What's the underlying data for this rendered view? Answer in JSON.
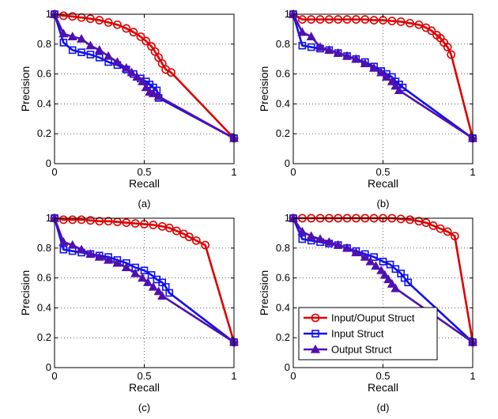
{
  "chart_data": [
    {
      "type": "line",
      "caption": "(a)",
      "xlabel": "Recall",
      "ylabel": "Precision",
      "xlim": [
        0,
        1
      ],
      "ylim": [
        0,
        1
      ],
      "xticks": [
        "0",
        "0.5",
        "1"
      ],
      "yticks": [
        "0",
        "0.2",
        "0.4",
        "0.6",
        "0.8",
        "1"
      ],
      "grid": true,
      "legend": false,
      "series": [
        {
          "name": "Input/Ouput Struct",
          "color": "#dd0000",
          "marker": "circle",
          "x": [
            0,
            0.05,
            0.1,
            0.15,
            0.2,
            0.25,
            0.3,
            0.35,
            0.4,
            0.44,
            0.48,
            0.51,
            0.54,
            0.56,
            0.58,
            0.6,
            0.62,
            0.65,
            1.0
          ],
          "y": [
            1.0,
            0.99,
            0.985,
            0.978,
            0.97,
            0.96,
            0.945,
            0.93,
            0.905,
            0.88,
            0.85,
            0.82,
            0.785,
            0.75,
            0.71,
            0.67,
            0.63,
            0.61,
            0.17
          ]
        },
        {
          "name": "Input Struct",
          "color": "#1010ee",
          "marker": "square",
          "x": [
            0,
            0.05,
            0.1,
            0.15,
            0.2,
            0.25,
            0.3,
            0.35,
            0.4,
            0.44,
            0.48,
            0.51,
            0.53,
            0.55,
            0.57,
            0.58,
            1.0
          ],
          "y": [
            1.0,
            0.81,
            0.76,
            0.745,
            0.73,
            0.71,
            0.68,
            0.66,
            0.63,
            0.6,
            0.57,
            0.55,
            0.53,
            0.51,
            0.49,
            0.44,
            0.17
          ]
        },
        {
          "name": "Output Struct",
          "color": "#5010b0",
          "marker": "triangle",
          "x": [
            0,
            0.05,
            0.1,
            0.15,
            0.2,
            0.25,
            0.3,
            0.35,
            0.4,
            0.43,
            0.46,
            0.49,
            0.51,
            0.53,
            0.55,
            0.58,
            1.0
          ],
          "y": [
            1.0,
            0.87,
            0.85,
            0.835,
            0.79,
            0.76,
            0.72,
            0.68,
            0.64,
            0.61,
            0.58,
            0.55,
            0.51,
            0.48,
            0.47,
            0.45,
            0.17
          ]
        }
      ]
    },
    {
      "type": "line",
      "caption": "(b)",
      "xlabel": "Recall",
      "ylabel": "Precision",
      "xlim": [
        0,
        1
      ],
      "ylim": [
        0,
        1
      ],
      "xticks": [
        "0",
        "0.5",
        "1"
      ],
      "yticks": [
        "0",
        "0.2",
        "0.4",
        "0.6",
        "0.8",
        "1"
      ],
      "grid": true,
      "legend": false,
      "series": [
        {
          "name": "Input/Ouput Struct",
          "color": "#dd0000",
          "marker": "circle",
          "x": [
            0,
            0.05,
            0.1,
            0.15,
            0.2,
            0.25,
            0.3,
            0.35,
            0.4,
            0.45,
            0.5,
            0.55,
            0.6,
            0.65,
            0.7,
            0.74,
            0.77,
            0.8,
            0.82,
            0.84,
            0.86,
            0.88,
            1.0
          ],
          "y": [
            1.0,
            0.965,
            0.965,
            0.965,
            0.965,
            0.965,
            0.965,
            0.965,
            0.965,
            0.96,
            0.96,
            0.955,
            0.95,
            0.94,
            0.93,
            0.91,
            0.89,
            0.86,
            0.84,
            0.81,
            0.78,
            0.73,
            0.17
          ]
        },
        {
          "name": "Input Struct",
          "color": "#1010ee",
          "marker": "square",
          "x": [
            0,
            0.05,
            0.1,
            0.15,
            0.2,
            0.25,
            0.3,
            0.35,
            0.4,
            0.45,
            0.49,
            0.52,
            0.55,
            0.57,
            0.59,
            0.61,
            1.0
          ],
          "y": [
            1.0,
            0.79,
            0.78,
            0.77,
            0.76,
            0.74,
            0.72,
            0.7,
            0.68,
            0.65,
            0.62,
            0.6,
            0.58,
            0.55,
            0.53,
            0.51,
            0.17
          ]
        },
        {
          "name": "Output Struct",
          "color": "#5010b0",
          "marker": "triangle",
          "x": [
            0,
            0.05,
            0.1,
            0.15,
            0.2,
            0.25,
            0.3,
            0.35,
            0.4,
            0.45,
            0.49,
            0.52,
            0.55,
            0.57,
            0.59,
            1.0
          ],
          "y": [
            1.0,
            0.88,
            0.85,
            0.78,
            0.76,
            0.74,
            0.72,
            0.7,
            0.67,
            0.64,
            0.61,
            0.58,
            0.55,
            0.52,
            0.49,
            0.17
          ]
        }
      ]
    },
    {
      "type": "line",
      "caption": "(c)",
      "xlabel": "Recall",
      "ylabel": "Precision",
      "xlim": [
        0,
        1
      ],
      "ylim": [
        0,
        1
      ],
      "xticks": [
        "0",
        "0.5",
        "1"
      ],
      "yticks": [
        "0",
        "0.2",
        "0.4",
        "0.6",
        "0.8",
        "1"
      ],
      "grid": true,
      "legend": false,
      "series": [
        {
          "name": "Input/Ouput Struct",
          "color": "#dd0000",
          "marker": "circle",
          "x": [
            0,
            0.05,
            0.1,
            0.15,
            0.2,
            0.25,
            0.3,
            0.35,
            0.4,
            0.45,
            0.5,
            0.55,
            0.6,
            0.64,
            0.68,
            0.72,
            0.75,
            0.79,
            0.84,
            1.0
          ],
          "y": [
            1.0,
            0.99,
            0.99,
            0.99,
            0.985,
            0.98,
            0.98,
            0.975,
            0.97,
            0.965,
            0.96,
            0.955,
            0.945,
            0.935,
            0.915,
            0.895,
            0.875,
            0.85,
            0.82,
            0.17
          ]
        },
        {
          "name": "Input Struct",
          "color": "#1010ee",
          "marker": "square",
          "x": [
            0,
            0.05,
            0.1,
            0.15,
            0.2,
            0.25,
            0.3,
            0.35,
            0.4,
            0.45,
            0.5,
            0.54,
            0.57,
            0.6,
            0.62,
            0.64,
            1.0
          ],
          "y": [
            1.0,
            0.79,
            0.78,
            0.77,
            0.76,
            0.75,
            0.74,
            0.72,
            0.7,
            0.67,
            0.65,
            0.62,
            0.59,
            0.57,
            0.54,
            0.5,
            0.17
          ]
        },
        {
          "name": "Output Struct",
          "color": "#5010b0",
          "marker": "triangle",
          "x": [
            0,
            0.05,
            0.1,
            0.15,
            0.2,
            0.25,
            0.3,
            0.35,
            0.4,
            0.45,
            0.49,
            0.52,
            0.55,
            0.58,
            0.6,
            1.0
          ],
          "y": [
            1.0,
            0.84,
            0.82,
            0.79,
            0.76,
            0.74,
            0.72,
            0.7,
            0.67,
            0.63,
            0.6,
            0.57,
            0.54,
            0.51,
            0.48,
            0.17
          ]
        }
      ]
    },
    {
      "type": "line",
      "caption": "(d)",
      "xlabel": "Recall",
      "ylabel": "Precision",
      "xlim": [
        0,
        1
      ],
      "ylim": [
        0,
        1
      ],
      "xticks": [
        "0",
        "0.5",
        "1"
      ],
      "yticks": [
        "0",
        "0.2",
        "0.4",
        "0.6",
        "0.8",
        "1"
      ],
      "grid": true,
      "legend": true,
      "legend_loc": "lower-right",
      "series": [
        {
          "name": "Input/Ouput Struct",
          "color": "#dd0000",
          "marker": "circle",
          "x": [
            0,
            0.05,
            0.1,
            0.15,
            0.2,
            0.25,
            0.3,
            0.35,
            0.4,
            0.45,
            0.5,
            0.55,
            0.6,
            0.65,
            0.7,
            0.74,
            0.78,
            0.82,
            0.86,
            0.9,
            1.0
          ],
          "y": [
            1.0,
            1.0,
            1.0,
            1.0,
            1.0,
            1.0,
            1.0,
            1.0,
            1.0,
            1.0,
            1.0,
            1.0,
            0.995,
            0.99,
            0.98,
            0.97,
            0.95,
            0.93,
            0.91,
            0.88,
            0.17
          ]
        },
        {
          "name": "Input Struct",
          "color": "#1010ee",
          "marker": "square",
          "x": [
            0,
            0.05,
            0.1,
            0.15,
            0.2,
            0.25,
            0.3,
            0.35,
            0.4,
            0.45,
            0.5,
            0.54,
            0.57,
            0.6,
            0.62,
            0.64,
            1.0
          ],
          "y": [
            1.0,
            0.86,
            0.85,
            0.84,
            0.83,
            0.82,
            0.8,
            0.78,
            0.76,
            0.74,
            0.71,
            0.69,
            0.66,
            0.63,
            0.6,
            0.57,
            0.17
          ]
        },
        {
          "name": "Output Struct",
          "color": "#5010b0",
          "marker": "triangle",
          "x": [
            0,
            0.05,
            0.1,
            0.15,
            0.2,
            0.25,
            0.3,
            0.35,
            0.4,
            0.43,
            0.46,
            0.49,
            0.51,
            0.53,
            0.55,
            0.57,
            1.0
          ],
          "y": [
            1.0,
            0.91,
            0.88,
            0.86,
            0.84,
            0.82,
            0.8,
            0.77,
            0.74,
            0.71,
            0.68,
            0.65,
            0.62,
            0.59,
            0.56,
            0.53,
            0.17
          ]
        }
      ]
    }
  ]
}
